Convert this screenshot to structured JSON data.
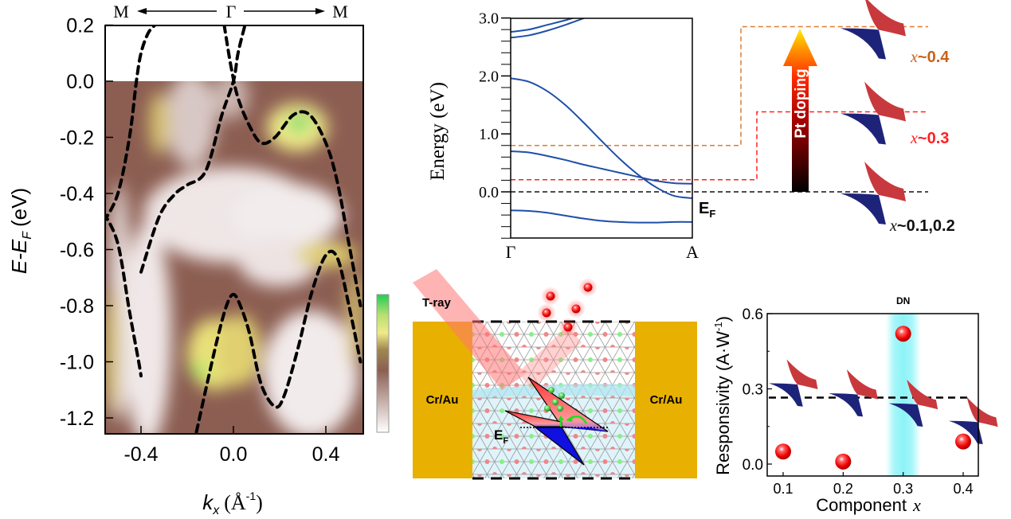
{
  "chart_data": [
    {
      "id": "arpes",
      "type": "heatmap",
      "title": "",
      "top_labels": {
        "left": "M",
        "center": "Γ",
        "right": "M"
      },
      "xlabel": "k_x (Å^-1)",
      "xlabel_main": "k",
      "xlabel_sub": "x",
      "xlabel_unit": "(Å",
      "xlabel_sup": "-1",
      "xlabel_close": ")",
      "ylabel": "E-E_F (eV)",
      "ylabel_main": "E-E",
      "ylabel_sub": "F",
      "ylabel_unit": "(eV)",
      "xlim": [
        -0.56,
        0.56
      ],
      "ylim": [
        -1.27,
        0.2
      ],
      "xticks": [
        -0.4,
        0.0,
        0.4
      ],
      "xtick_labels": [
        "-0.4",
        "0.0",
        "0.4"
      ],
      "yticks": [
        0.2,
        0.0,
        -0.2,
        -0.4,
        -0.6,
        -0.8,
        -1.0,
        -1.2
      ],
      "ytick_labels": [
        "0.2",
        "0.0",
        "-0.2",
        "-0.4",
        "-0.6",
        "-0.8",
        "-1.0",
        "-1.2"
      ],
      "colorbar": {
        "colors": [
          "#ffffff",
          "#8c5e52",
          "#f0ea8a",
          "#22cc55"
        ],
        "label": ""
      },
      "dashed_bands": [
        {
          "name": "band-1",
          "x": [
            -0.56,
            -0.5,
            -0.45,
            -0.42,
            -0.4,
            -0.37,
            -0.34
          ],
          "y": [
            -0.5,
            -0.4,
            -0.2,
            0.0,
            0.1,
            0.17,
            0.2
          ]
        },
        {
          "name": "band-2",
          "x": [
            -0.56,
            -0.5,
            -0.45,
            -0.41,
            -0.4
          ],
          "y": [
            -0.47,
            -0.58,
            -0.82,
            -1.0,
            -1.05
          ]
        },
        {
          "name": "band-3",
          "x": [
            -0.4,
            -0.32,
            -0.25,
            -0.2,
            -0.12,
            -0.05,
            0.0,
            0.02,
            0.05
          ],
          "y": [
            -0.68,
            -0.48,
            -0.4,
            -0.37,
            -0.32,
            -0.12,
            0.0,
            0.1,
            0.2
          ]
        },
        {
          "name": "band-4",
          "x": [
            -0.04,
            -0.01,
            0.02,
            0.07,
            0.12,
            0.18,
            0.26,
            0.33,
            0.4,
            0.45,
            0.5,
            0.55
          ],
          "y": [
            0.2,
            0.05,
            -0.06,
            -0.16,
            -0.22,
            -0.2,
            -0.12,
            -0.12,
            -0.22,
            -0.36,
            -0.58,
            -0.8
          ]
        },
        {
          "name": "band-5",
          "x": [
            -0.16,
            -0.12,
            -0.07,
            -0.03,
            0.0,
            0.03,
            0.07,
            0.12,
            0.18,
            0.22,
            0.28,
            0.34,
            0.4,
            0.45,
            0.5,
            0.55
          ],
          "y": [
            -1.25,
            -1.1,
            -0.92,
            -0.8,
            -0.76,
            -0.8,
            -0.9,
            -1.08,
            -1.16,
            -1.12,
            -0.95,
            -0.75,
            -0.62,
            -0.63,
            -0.8,
            -1.0
          ]
        }
      ]
    },
    {
      "id": "band-structure",
      "type": "line",
      "ylabel": "Energy (eV)",
      "xtick_labels": [
        "Γ",
        "A"
      ],
      "ylim": [
        -0.8,
        3.0
      ],
      "yticks": [
        0.0,
        1.0,
        2.0,
        3.0
      ],
      "ytick_labels": [
        "0.0",
        "1.0",
        "2.0",
        "3.0"
      ],
      "fermi_label": "E",
      "fermi_sub": "F",
      "series": [
        {
          "name": "band-a",
          "x": [
            0,
            0.1,
            0.2,
            0.3,
            0.4
          ],
          "y": [
            2.76,
            2.8,
            2.88,
            2.96,
            3.05
          ]
        },
        {
          "name": "band-b",
          "x": [
            0,
            0.1,
            0.2,
            0.3,
            0.45
          ],
          "y": [
            2.66,
            2.7,
            2.78,
            2.88,
            3.05
          ]
        },
        {
          "name": "band-c",
          "x": [
            0,
            0.1,
            0.2,
            0.3,
            0.4,
            0.5,
            0.6,
            0.7,
            0.8,
            0.9,
            1.0
          ],
          "y": [
            1.96,
            1.9,
            1.74,
            1.5,
            1.2,
            0.88,
            0.57,
            0.3,
            0.08,
            -0.07,
            -0.11
          ]
        },
        {
          "name": "band-d",
          "x": [
            0,
            0.1,
            0.2,
            0.3,
            0.4,
            0.5,
            0.6,
            0.7,
            0.8,
            0.9,
            1.0
          ],
          "y": [
            0.7,
            0.68,
            0.62,
            0.55,
            0.47,
            0.4,
            0.33,
            0.26,
            0.19,
            0.15,
            0.14
          ]
        },
        {
          "name": "band-e",
          "x": [
            0,
            0.1,
            0.2,
            0.3,
            0.4,
            0.5,
            0.6,
            0.7,
            0.8,
            0.9,
            1.0
          ],
          "y": [
            -0.32,
            -0.33,
            -0.36,
            -0.41,
            -0.46,
            -0.5,
            -0.52,
            -0.53,
            -0.53,
            -0.52,
            -0.52
          ]
        }
      ],
      "levels": [
        {
          "name": "x-0.4-level",
          "value": 0.8,
          "color": "#e07b2a",
          "step_to": 2.85,
          "label_pre": "x",
          "label_post": "~0.4"
        },
        {
          "name": "x-0.3-level",
          "value": 0.21,
          "color": "#ff2222",
          "step_to": 1.38,
          "label_pre": "x",
          "label_post": "~0.3"
        },
        {
          "name": "fermi-level",
          "value": 0.0,
          "color": "#111111",
          "step_to": 0.0,
          "label_pre": "x",
          "label_post": "~0.1,0.2"
        }
      ],
      "doping_arrow_label": "Pt doping"
    },
    {
      "id": "responsivity",
      "type": "scatter",
      "xlabel": "Component",
      "xlabel_var": "x",
      "ylabel": "Responsivity (A·W",
      "ylabel_sup": "-1",
      "ylabel_close": ")",
      "xlim": [
        0.075,
        0.425
      ],
      "ylim": [
        -0.05,
        0.6
      ],
      "xticks": [
        0.1,
        0.2,
        0.3,
        0.4
      ],
      "xtick_labels": [
        "0.1",
        "0.2",
        "0.3",
        "0.4"
      ],
      "yticks": [
        0.0,
        0.3,
        0.6
      ],
      "ytick_labels": [
        "0.0",
        "0.3",
        "0.6"
      ],
      "x": [
        0.1,
        0.2,
        0.3,
        0.4
      ],
      "y": [
        0.05,
        0.01,
        0.52,
        0.09
      ],
      "reference_line": 0.265,
      "highlight": {
        "x": 0.3,
        "label": "DN",
        "color": "#7ff2f6"
      },
      "cone_icons_y": [
        0.33,
        0.29,
        0.25,
        0.18
      ]
    }
  ],
  "device": {
    "beam_label": "T-ray",
    "left_contact": "Cr/Au",
    "right_contact": "Cr/Au",
    "fermi_label": "E",
    "fermi_sub": "F",
    "colors": {
      "contact": "#e8b000",
      "electron": "#ee1111",
      "hole": "#44cc44"
    }
  }
}
